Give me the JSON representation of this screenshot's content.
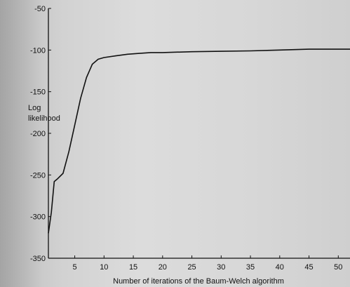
{
  "chart_data": {
    "type": "line",
    "title": "",
    "xlabel": "Number of iterations of the Baum-Welch algorithm",
    "ylabel_lines": [
      "Log",
      "likelihood"
    ],
    "xlim": [
      0.5,
      52
    ],
    "ylim": [
      -350,
      -50
    ],
    "xticks": [
      5,
      10,
      15,
      20,
      25,
      30,
      35,
      40,
      45,
      50
    ],
    "yticks": [
      -50,
      -100,
      -150,
      -200,
      -250,
      -300,
      -350
    ],
    "grid": false,
    "legend": "none",
    "line_color": "#111111",
    "series": [
      {
        "x": [
          0.5,
          1,
          1.5,
          2,
          3,
          4,
          5,
          6,
          7,
          8,
          9,
          10,
          12,
          14,
          16,
          18,
          20,
          25,
          30,
          35,
          40,
          45,
          50,
          52
        ],
        "values": [
          -320,
          -295,
          -258,
          -255,
          -248,
          -222,
          -190,
          -158,
          -133,
          -117,
          -111,
          -109,
          -107,
          -105,
          -104,
          -103,
          -103,
          -102,
          -101.5,
          -101,
          -100,
          -99,
          -99,
          -99
        ]
      }
    ]
  }
}
